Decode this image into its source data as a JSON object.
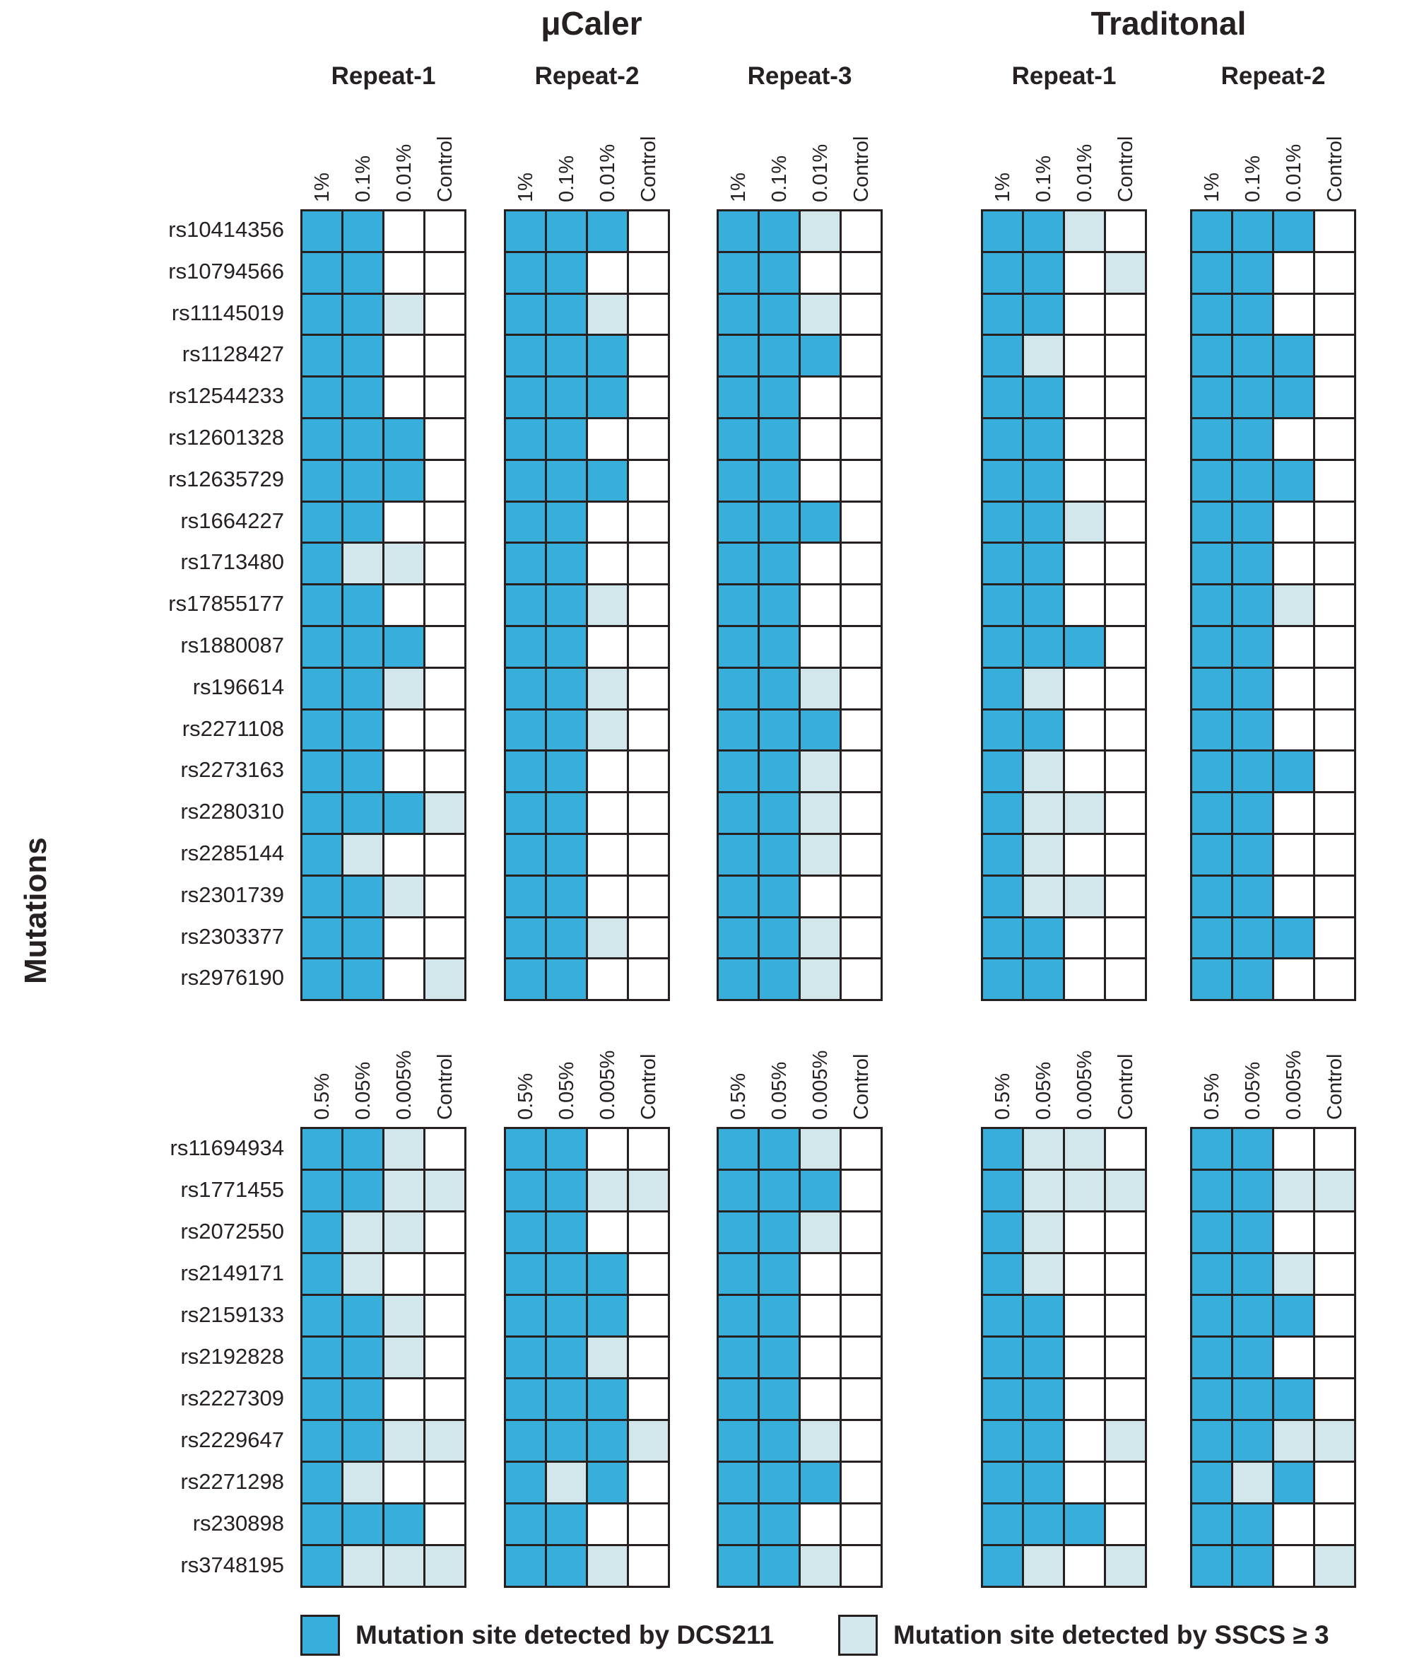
{
  "figure": {
    "ylabel": "Mutations",
    "groups": [
      {
        "title": "μCaler",
        "repeats": [
          "Repeat-1",
          "Repeat-2",
          "Repeat-3"
        ]
      },
      {
        "title": "Traditonal",
        "repeats": [
          "Repeat-1",
          "Repeat-2"
        ]
      }
    ],
    "legend": [
      {
        "label": "Mutation site detected by DCS211",
        "style": "dcs"
      },
      {
        "label": "Mutation site detected by SSCS ≥ 3",
        "style": "sscs"
      }
    ],
    "colors": {
      "dcs": "#38afda",
      "sscs": "#d2e7ec",
      "grid_line": "#262120",
      "empty": "#ffffff"
    }
  },
  "chart_data": {
    "type": "heatmap",
    "cell_encoding": {
      "D": "mutation site detected by DCS211 (dark blue)",
      "S": "mutation site detected by SSCS >= 3 (light blue)",
      ".": "not detected (white)"
    },
    "blocks": [
      "μCaler Repeat-1",
      "μCaler Repeat-2",
      "μCaler Repeat-3",
      "Traditonal Repeat-1",
      "Traditonal Repeat-2"
    ],
    "panels": [
      {
        "concentrations": [
          "1%",
          "0.1%",
          "0.01%",
          "Control"
        ],
        "mutations": [
          "rs10414356",
          "rs10794566",
          "rs11145019",
          "rs1128427",
          "rs12544233",
          "rs12601328",
          "rs12635729",
          "rs1664227",
          "rs1713480",
          "rs17855177",
          "rs1880087",
          "rs196614",
          "rs2271108",
          "rs2273163",
          "rs2280310",
          "rs2285144",
          "rs2301739",
          "rs2303377",
          "rs2976190"
        ],
        "cells": [
          [
            "DD..",
            "DD..",
            "DDS.",
            "DD..",
            "DD..",
            "DDD.",
            "DDD.",
            "DD..",
            "DSS.",
            "DD..",
            "DDD.",
            "DDS.",
            "DD..",
            "DD..",
            "DDDS",
            "DS..",
            "DDS.",
            "DD..",
            "DD.S"
          ],
          [
            "DDD.",
            "DD..",
            "DDS.",
            "DDD.",
            "DDD.",
            "DD..",
            "DDD.",
            "DD..",
            "DD..",
            "DDS.",
            "DD..",
            "DDS.",
            "DDS.",
            "DD..",
            "DD..",
            "DD..",
            "DD..",
            "DDS.",
            "DD.."
          ],
          [
            "DDS.",
            "DD..",
            "DDS.",
            "DDD.",
            "DD..",
            "DD..",
            "DD..",
            "DDD.",
            "DD..",
            "DD..",
            "DD..",
            "DDS.",
            "DDD.",
            "DDS.",
            "DDS.",
            "DDS.",
            "DD..",
            "DDS.",
            "DDS."
          ],
          [
            "DDS.",
            "DD.S",
            "DD..",
            "DS..",
            "DD..",
            "DD..",
            "DD..",
            "DDS.",
            "DD..",
            "DD..",
            "DDD.",
            "DS..",
            "DD..",
            "DS..",
            "DSS.",
            "DS..",
            "DSS.",
            "DD..",
            "DD.."
          ],
          [
            "DDD.",
            "DD..",
            "DD..",
            "DDD.",
            "DDD.",
            "DD..",
            "DDD.",
            "DD..",
            "DD..",
            "DDS.",
            "DD..",
            "DD..",
            "DD..",
            "DDD.",
            "DD..",
            "DD..",
            "DD..",
            "DDD.",
            "DD.."
          ]
        ]
      },
      {
        "concentrations": [
          "0.5%",
          "0.05%",
          "0.005%",
          "Control"
        ],
        "mutations": [
          "rs11694934",
          "rs1771455",
          "rs2072550",
          "rs2149171",
          "rs2159133",
          "rs2192828",
          "rs2227309",
          "rs2229647",
          "rs2271298",
          "rs230898",
          "rs3748195"
        ],
        "cells": [
          [
            "DDS.",
            "DDSS",
            "DSS.",
            "DS..",
            "DDS.",
            "DDS.",
            "DD..",
            "DDSS",
            "DS..",
            "DDD.",
            "DSSS"
          ],
          [
            "DD..",
            "DDSS",
            "DD..",
            "DDD.",
            "DDD.",
            "DDS.",
            "DDD.",
            "DDDS",
            "DSD.",
            "DD..",
            "DDS."
          ],
          [
            "DDS.",
            "DDD.",
            "DDS.",
            "DD..",
            "DD..",
            "DD..",
            "DD..",
            "DDS.",
            "DDD.",
            "DD..",
            "DDS."
          ],
          [
            "DSS.",
            "DSSS",
            "DS..",
            "DS..",
            "DD..",
            "DD..",
            "DD..",
            "DD.S",
            "DD..",
            "DDD.",
            "DS.S"
          ],
          [
            "DD..",
            "DDSS",
            "DD..",
            "DDS.",
            "DDD.",
            "DD..",
            "DDD.",
            "DDSS",
            "DSD.",
            "DD..",
            "DD.S"
          ]
        ]
      }
    ]
  }
}
